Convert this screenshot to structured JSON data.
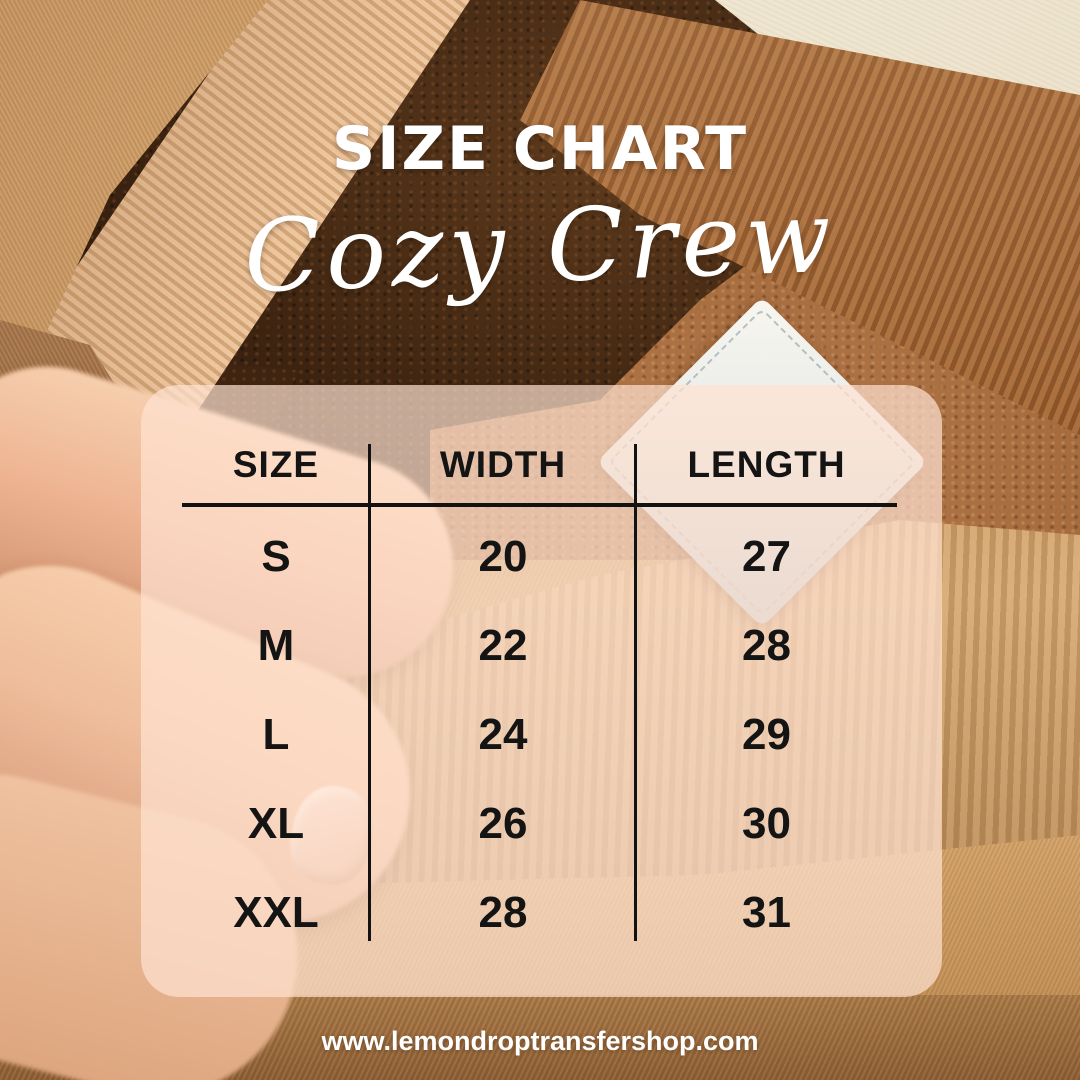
{
  "header": {
    "title": "SIZE CHART",
    "subtitle": "Cozy Crew"
  },
  "footer": {
    "website": "www.lemondroptransfershop.com"
  },
  "size_table": {
    "columns": [
      "SIZE",
      "WIDTH",
      "LENGTH"
    ],
    "rows": [
      {
        "size": "S",
        "width": "20",
        "length": "27"
      },
      {
        "size": "M",
        "width": "22",
        "length": "28"
      },
      {
        "size": "L",
        "width": "24",
        "length": "29"
      },
      {
        "size": "XL",
        "width": "26",
        "length": "30"
      },
      {
        "size": "XXL",
        "width": "28",
        "length": "31"
      }
    ]
  },
  "chart_data": {
    "type": "table",
    "title": "SIZE CHART",
    "subtitle": "Cozy Crew",
    "columns": [
      "SIZE",
      "WIDTH",
      "LENGTH"
    ],
    "rows": [
      [
        "S",
        20,
        27
      ],
      [
        "M",
        22,
        28
      ],
      [
        "L",
        24,
        29
      ],
      [
        "XL",
        26,
        30
      ],
      [
        "XXL",
        28,
        31
      ]
    ]
  },
  "colors": {
    "title_text": "#ffffff",
    "table_text": "#141414",
    "panel_overlay": "rgba(255,226,210,0.70)",
    "background_tan": "#c3925f",
    "background_dark_brown": "#3a2210"
  }
}
